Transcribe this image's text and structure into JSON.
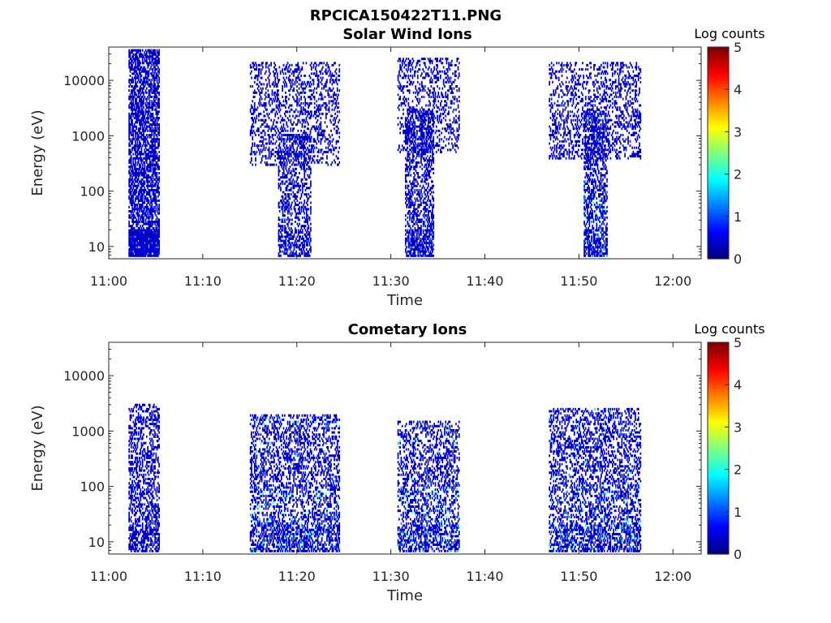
{
  "figure": {
    "filename_title": "RPCICA150422T11.PNG"
  },
  "chart_data": [
    {
      "type": "heatmap",
      "title": "Solar Wind Ions",
      "xlabel": "Time",
      "ylabel": "Energy (eV)",
      "x_range_minutes_after_11": [
        0,
        63
      ],
      "x_ticks": [
        "11:00",
        "11:10",
        "11:20",
        "11:30",
        "11:40",
        "11:50",
        "12:00"
      ],
      "y_scale": "log",
      "y_range": [
        6,
        40000
      ],
      "y_ticks": [
        "10",
        "100",
        "1000",
        "10000"
      ],
      "colorbar": {
        "label": "Log counts",
        "range": [
          0,
          5
        ],
        "ticks": [
          "0",
          "1",
          "2",
          "3",
          "4",
          "5"
        ],
        "colormap": "jet"
      },
      "bursts": [
        {
          "start_min": 2.1,
          "end_min": 5.3,
          "emin": 7,
          "emax": 35000,
          "density": 0.62,
          "max_level": 0.8
        },
        {
          "start_min": 15.0,
          "end_min": 24.5,
          "emin": 300,
          "emax": 20000,
          "density": 0.28,
          "max_level": 0.7
        },
        {
          "start_min": 18.0,
          "end_min": 21.5,
          "emin": 7,
          "emax": 1000,
          "density": 0.35,
          "max_level": 0.8
        },
        {
          "start_min": 30.7,
          "end_min": 37.2,
          "emin": 500,
          "emax": 25000,
          "density": 0.26,
          "max_level": 0.7
        },
        {
          "start_min": 31.5,
          "end_min": 34.5,
          "emin": 7,
          "emax": 3000,
          "density": 0.45,
          "max_level": 0.9
        },
        {
          "start_min": 46.8,
          "end_min": 56.5,
          "emin": 400,
          "emax": 20000,
          "density": 0.3,
          "max_level": 0.7
        },
        {
          "start_min": 50.5,
          "end_min": 53.0,
          "emin": 7,
          "emax": 3000,
          "density": 0.45,
          "max_level": 1.8
        }
      ]
    },
    {
      "type": "heatmap",
      "title": "Cometary Ions",
      "xlabel": "Time",
      "ylabel": "Energy (eV)",
      "x_range_minutes_after_11": [
        0,
        63
      ],
      "x_ticks": [
        "11:00",
        "11:10",
        "11:20",
        "11:30",
        "11:40",
        "11:50",
        "12:00"
      ],
      "y_scale": "log",
      "y_range": [
        6,
        40000
      ],
      "y_ticks": [
        "10",
        "100",
        "1000",
        "10000"
      ],
      "colorbar": {
        "label": "Log counts",
        "range": [
          0,
          5
        ],
        "ticks": [
          "0",
          "1",
          "2",
          "3",
          "4",
          "5"
        ],
        "colormap": "jet"
      },
      "bursts": [
        {
          "start_min": 2.1,
          "end_min": 5.3,
          "emin": 7,
          "emax": 3000,
          "density": 0.4,
          "max_level": 0.8
        },
        {
          "start_min": 15.0,
          "end_min": 24.5,
          "emin": 7,
          "emax": 2000,
          "density": 0.38,
          "max_level": 2.2
        },
        {
          "start_min": 30.7,
          "end_min": 37.2,
          "emin": 7,
          "emax": 1500,
          "density": 0.35,
          "max_level": 2.0
        },
        {
          "start_min": 46.8,
          "end_min": 56.5,
          "emin": 7,
          "emax": 2500,
          "density": 0.38,
          "max_level": 1.9
        }
      ]
    }
  ]
}
